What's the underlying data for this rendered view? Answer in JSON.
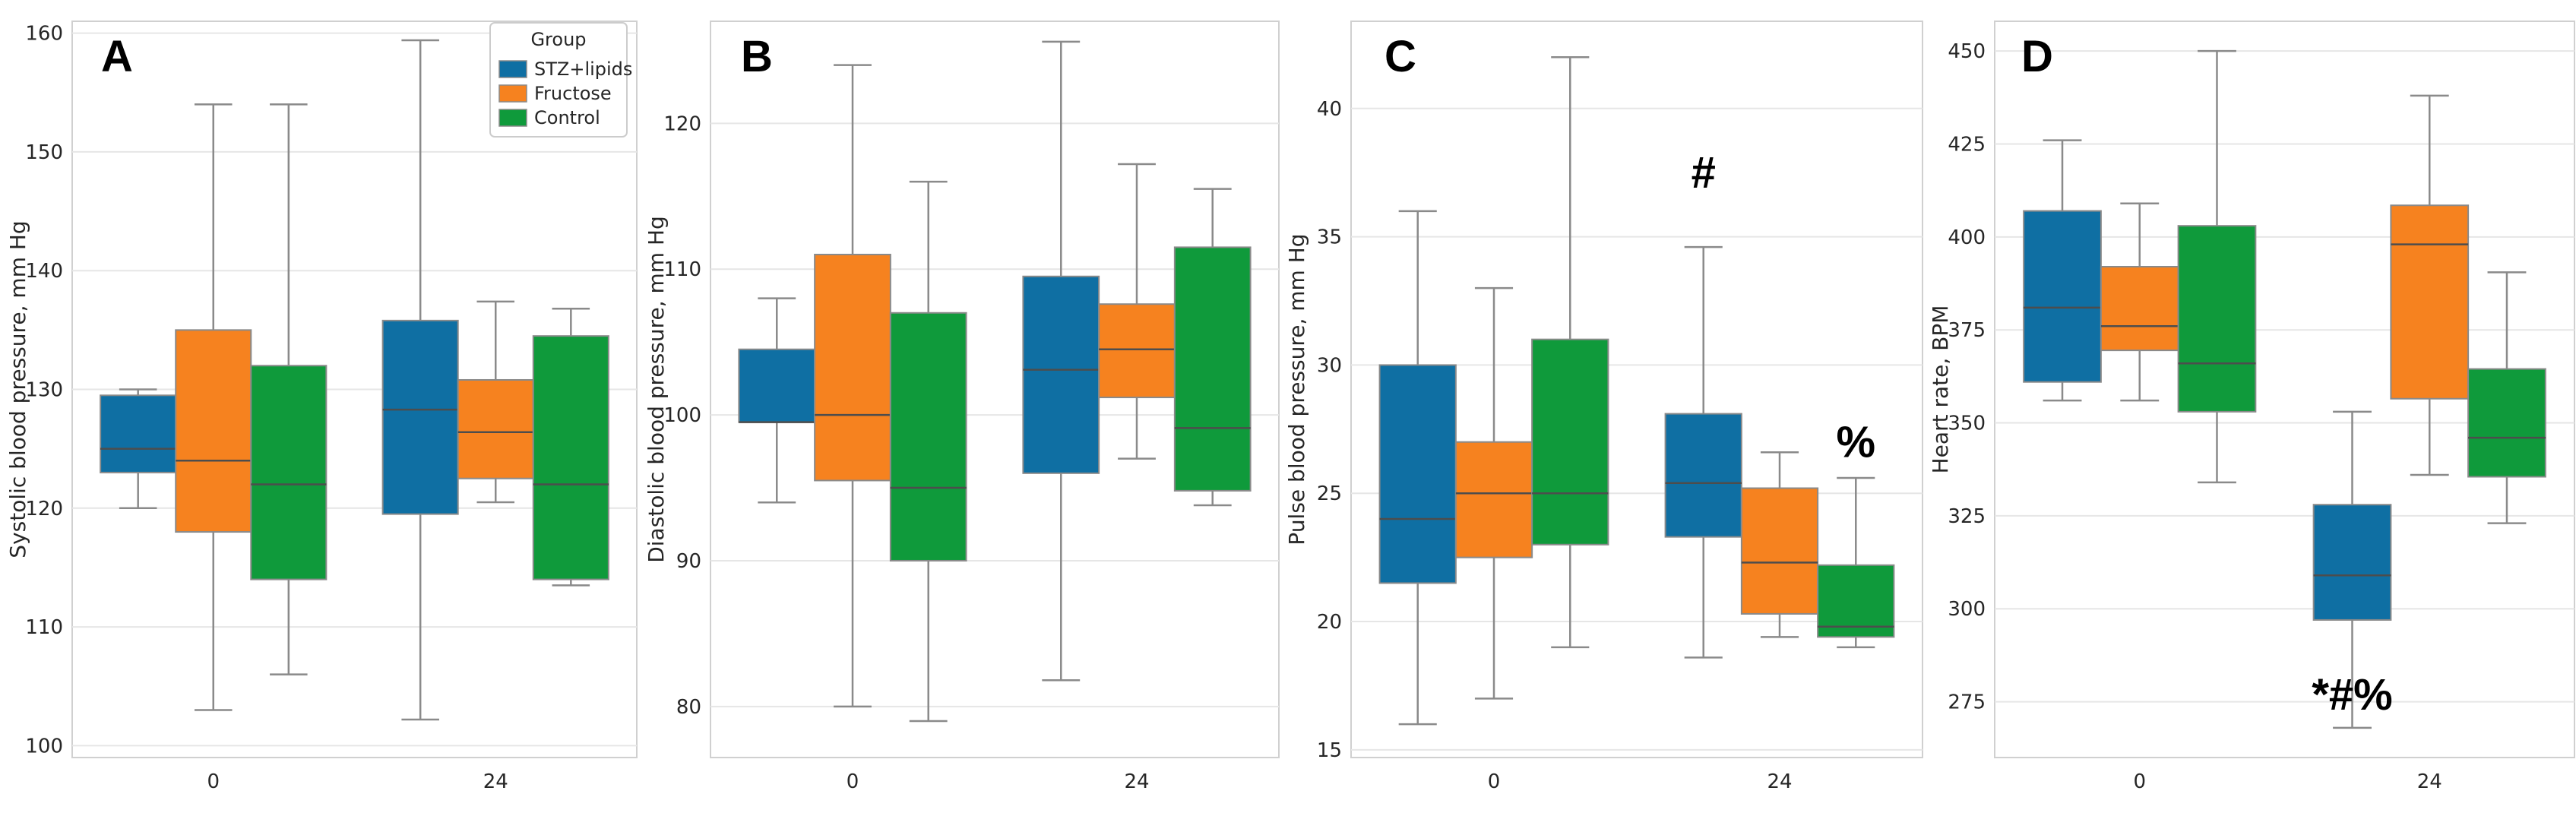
{
  "colors": {
    "STZ+lipids": "#0f6fa3",
    "Fructose": "#f6821f",
    "Control": "#0f9a3b",
    "grid": "#e6e6e6",
    "whisker": "#8a8a8a",
    "median": "#4d4d4d"
  },
  "legend": {
    "title": "Group",
    "entries": [
      "STZ+lipids",
      "Fructose",
      "Control"
    ]
  },
  "chart_data": [
    {
      "type": "box",
      "panel": "A",
      "ylabel": "Systolic blood pressure, mm Hg",
      "xlabel": "",
      "categories": [
        "0",
        "24"
      ],
      "ylim": [
        99,
        161
      ],
      "yticks": [
        100,
        110,
        120,
        130,
        140,
        150,
        160
      ],
      "show_legend": true,
      "series": [
        {
          "name": "STZ+lipids",
          "boxes": [
            {
              "min": 120,
              "q1": 123,
              "median": 125,
              "q3": 129.5,
              "max": 130
            },
            {
              "min": 102.2,
              "q1": 119.5,
              "median": 128.3,
              "q3": 135.8,
              "max": 159.4
            }
          ]
        },
        {
          "name": "Fructose",
          "boxes": [
            {
              "min": 103,
              "q1": 118,
              "median": 124,
              "q3": 135,
              "max": 154
            },
            {
              "min": 120.5,
              "q1": 122.5,
              "median": 126.4,
              "q3": 130.8,
              "max": 137.4
            }
          ]
        },
        {
          "name": "Control",
          "boxes": [
            {
              "min": 106,
              "q1": 114,
              "median": 122,
              "q3": 132,
              "max": 154
            },
            {
              "min": 113.5,
              "q1": 114,
              "median": 122,
              "q3": 134.5,
              "max": 136.8
            }
          ]
        }
      ],
      "annotations": []
    },
    {
      "type": "box",
      "panel": "B",
      "ylabel": "Diastolic blood pressure, mm Hg",
      "xlabel": "",
      "categories": [
        "0",
        "24"
      ],
      "ylim": [
        76.5,
        127
      ],
      "yticks": [
        80,
        90,
        100,
        110,
        120
      ],
      "show_legend": false,
      "series": [
        {
          "name": "STZ+lipids",
          "boxes": [
            {
              "min": 94,
              "q1": 99.5,
              "median": 99.5,
              "q3": 104.5,
              "max": 108
            },
            {
              "min": 81.8,
              "q1": 96,
              "median": 103.1,
              "q3": 109.5,
              "max": 125.6
            }
          ]
        },
        {
          "name": "Fructose",
          "boxes": [
            {
              "min": 80,
              "q1": 95.5,
              "median": 100,
              "q3": 111,
              "max": 124
            },
            {
              "min": 97,
              "q1": 101.2,
              "median": 104.5,
              "q3": 107.6,
              "max": 117.2
            }
          ]
        },
        {
          "name": "Control",
          "boxes": [
            {
              "min": 79,
              "q1": 90,
              "median": 95,
              "q3": 107,
              "max": 116
            },
            {
              "min": 93.8,
              "q1": 94.8,
              "median": 99.1,
              "q3": 111.5,
              "max": 115.5
            }
          ]
        }
      ],
      "annotations": []
    },
    {
      "type": "box",
      "panel": "C",
      "ylabel": "Pulse blood pressure, mm Hg",
      "xlabel": "",
      "categories": [
        "0",
        "24"
      ],
      "ylim": [
        14.7,
        43.4
      ],
      "yticks": [
        15,
        20,
        25,
        30,
        35,
        40
      ],
      "show_legend": false,
      "series": [
        {
          "name": "STZ+lipids",
          "boxes": [
            {
              "min": 16,
              "q1": 21.5,
              "median": 24,
              "q3": 30,
              "max": 36
            },
            {
              "min": 18.6,
              "q1": 23.3,
              "median": 25.4,
              "q3": 28.1,
              "max": 34.6
            }
          ]
        },
        {
          "name": "Fructose",
          "boxes": [
            {
              "min": 17,
              "q1": 22.5,
              "median": 25,
              "q3": 27,
              "max": 33
            },
            {
              "min": 19.4,
              "q1": 20.3,
              "median": 22.3,
              "q3": 25.2,
              "max": 26.6
            }
          ]
        },
        {
          "name": "Control",
          "boxes": [
            {
              "min": 19,
              "q1": 23,
              "median": 25,
              "q3": 31,
              "max": 42
            },
            {
              "min": 19,
              "q1": 19.4,
              "median": 19.8,
              "q3": 22.2,
              "max": 25.6
            }
          ]
        }
      ],
      "annotations": [
        {
          "text": "#",
          "category": "24",
          "series": "STZ+lipids",
          "y": 37.5
        },
        {
          "text": "%",
          "category": "24",
          "series": "Control",
          "y": 27
        }
      ]
    },
    {
      "type": "box",
      "panel": "D",
      "ylabel": "Heart rate, BPM",
      "xlabel": "",
      "categories": [
        "0",
        "24"
      ],
      "ylim": [
        260,
        458
      ],
      "yticks": [
        275,
        300,
        325,
        350,
        375,
        400,
        425,
        450
      ],
      "show_legend": false,
      "series": [
        {
          "name": "STZ+lipids",
          "boxes": [
            {
              "min": 356,
              "q1": 361,
              "median": 381,
              "q3": 407,
              "max": 426
            },
            {
              "min": 268,
              "q1": 297,
              "median": 309,
              "q3": 328,
              "max": 353
            }
          ]
        },
        {
          "name": "Fructose",
          "boxes": [
            {
              "min": 356,
              "q1": 369.5,
              "median": 376,
              "q3": 392,
              "max": 409
            },
            {
              "min": 336,
              "q1": 356.5,
              "median": 398,
              "q3": 408.5,
              "max": 438
            }
          ]
        },
        {
          "name": "Control",
          "boxes": [
            {
              "min": 334,
              "q1": 353,
              "median": 366,
              "q3": 403,
              "max": 450
            },
            {
              "min": 323,
              "q1": 335.5,
              "median": 346,
              "q3": 364.5,
              "max": 390.5
            }
          ]
        }
      ],
      "annotations": [
        {
          "text": "*#%",
          "category": "24",
          "series": "STZ+lipids",
          "y": 277
        }
      ]
    }
  ]
}
